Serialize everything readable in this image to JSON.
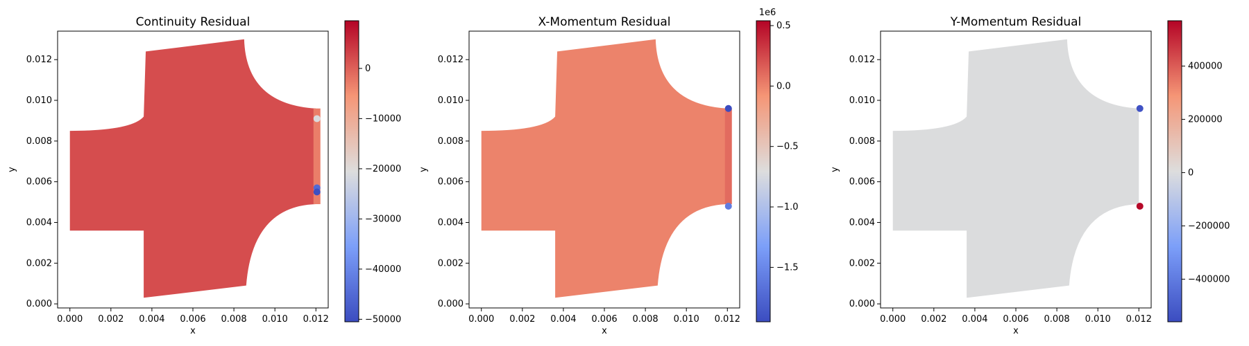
{
  "chart_data": [
    {
      "type": "scatter",
      "title": "Continuity Residual",
      "xlabel": "x",
      "ylabel": "y",
      "xlim": [
        -0.0006,
        0.0126
      ],
      "ylim": [
        -0.0002,
        0.0134
      ],
      "xticks": [
        "0.000",
        "0.002",
        "0.004",
        "0.006",
        "0.008",
        "0.010",
        "0.012"
      ],
      "yticks": [
        "0.000",
        "0.002",
        "0.004",
        "0.006",
        "0.008",
        "0.010",
        "0.012"
      ],
      "colormap": "coolwarm",
      "colorbar": {
        "min": -50500,
        "max": 9500,
        "offset_label": "",
        "ticks": [
          {
            "value": 0,
            "label": "0"
          },
          {
            "value": -10000,
            "label": "−10000"
          },
          {
            "value": -20000,
            "label": "−20000"
          },
          {
            "value": -30000,
            "label": "−30000"
          },
          {
            "value": -40000,
            "label": "−40000"
          },
          {
            "value": -50000,
            "label": "−50000"
          }
        ]
      },
      "domain_value": 2000,
      "outlet_strip": {
        "x": 0.01205,
        "ymin": 0.0049,
        "ymax": 0.0096,
        "value": -3000
      },
      "highlights": [
        {
          "x": 0.01205,
          "y": 0.0091,
          "value": -21000
        },
        {
          "x": 0.01205,
          "y": 0.0057,
          "value": -45000
        },
        {
          "x": 0.01205,
          "y": 0.0055,
          "value": -50000
        }
      ]
    },
    {
      "type": "scatter",
      "title": "X-Momentum Residual",
      "xlabel": "x",
      "ylabel": "y",
      "xlim": [
        -0.0006,
        0.0126
      ],
      "ylim": [
        -0.0002,
        0.0134
      ],
      "xticks": [
        "0.000",
        "0.002",
        "0.004",
        "0.006",
        "0.008",
        "0.010",
        "0.012"
      ],
      "yticks": [
        "0.000",
        "0.002",
        "0.004",
        "0.006",
        "0.008",
        "0.010",
        "0.012"
      ],
      "colormap": "coolwarm",
      "colorbar": {
        "min": -1950000,
        "max": 540000,
        "offset_label": "1e6",
        "ticks": [
          {
            "value": 500000,
            "label": "0.5"
          },
          {
            "value": 0,
            "label": "0.0"
          },
          {
            "value": -500000,
            "label": "−0.5"
          },
          {
            "value": -1000000,
            "label": "−1.0"
          },
          {
            "value": -1500000,
            "label": "−1.5"
          }
        ]
      },
      "domain_value": 0,
      "outlet_strip": {
        "x": 0.01205,
        "ymin": 0.0049,
        "ymax": 0.0096,
        "value": 100000
      },
      "highlights": [
        {
          "x": 0.01205,
          "y": 0.0096,
          "value": -1950000
        },
        {
          "x": 0.01205,
          "y": 0.0048,
          "value": -1600000
        }
      ]
    },
    {
      "type": "scatter",
      "title": "Y-Momentum Residual",
      "xlabel": "x",
      "ylabel": "y",
      "xlim": [
        -0.0006,
        0.0126
      ],
      "ylim": [
        -0.0002,
        0.0134
      ],
      "xticks": [
        "0.000",
        "0.002",
        "0.004",
        "0.006",
        "0.008",
        "0.010",
        "0.012"
      ],
      "yticks": [
        "0.000",
        "0.002",
        "0.004",
        "0.006",
        "0.008",
        "0.010",
        "0.012"
      ],
      "colormap": "coolwarm",
      "colorbar": {
        "min": -560000,
        "max": 570000,
        "offset_label": "",
        "ticks": [
          {
            "value": 400000,
            "label": "400000"
          },
          {
            "value": 200000,
            "label": "200000"
          },
          {
            "value": 0,
            "label": "0"
          },
          {
            "value": -200000,
            "label": "−200000"
          },
          {
            "value": -400000,
            "label": "−400000"
          }
        ]
      },
      "domain_value": 0,
      "outlet_strip": null,
      "highlights": [
        {
          "x": 0.01205,
          "y": 0.0096,
          "value": -540000
        },
        {
          "x": 0.01205,
          "y": 0.0048,
          "value": 560000
        }
      ]
    }
  ]
}
